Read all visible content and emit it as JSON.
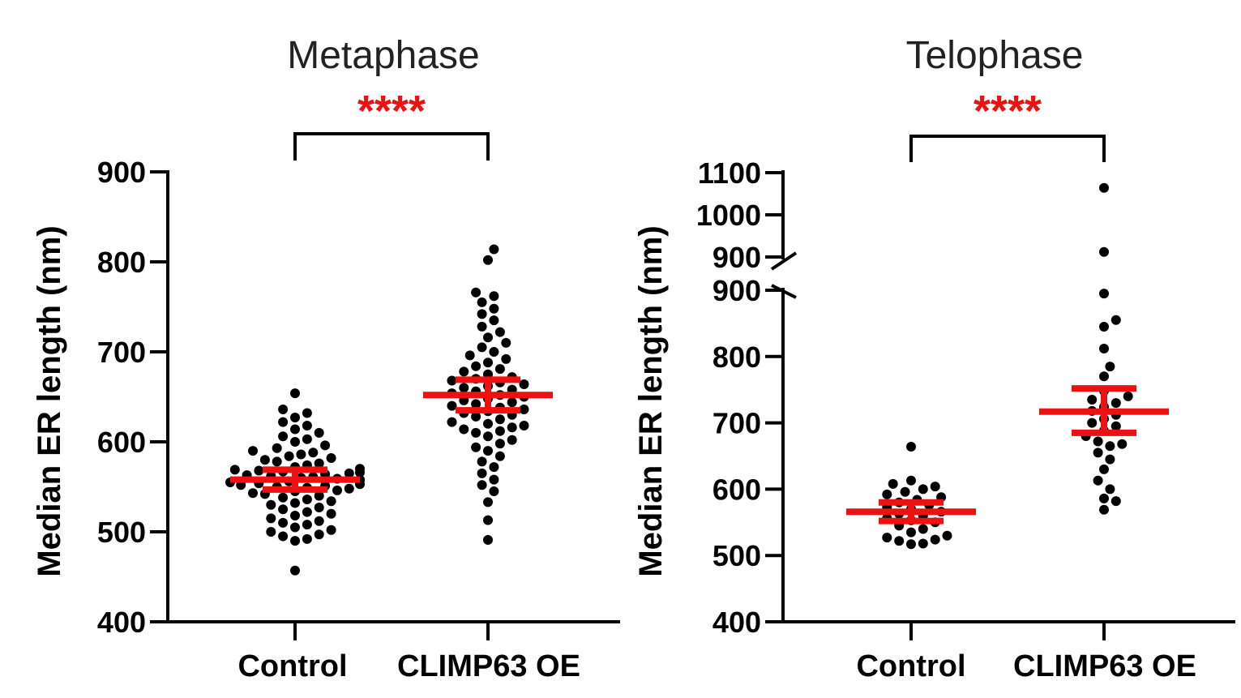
{
  "chart_data": [
    {
      "type": "scatter",
      "subtype": "dot-plot-with-mean-sem",
      "title": "Metaphase",
      "ylabel": "Median ER length (nm)",
      "xlabel": "",
      "ylim": [
        400,
        900
      ],
      "yticks": [
        400,
        500,
        600,
        700,
        800,
        900
      ],
      "categories": [
        "Control",
        "CLIMP63 OE"
      ],
      "significance": "****",
      "colors": {
        "points": "#000000",
        "summary": "#ee1111",
        "significance": "#ee1111"
      },
      "series": [
        {
          "name": "Control",
          "mean": 558,
          "sem_low": 547,
          "sem_high": 569,
          "values": [
            457,
            490,
            492,
            495,
            497,
            500,
            502,
            505,
            508,
            510,
            512,
            515,
            518,
            520,
            522,
            525,
            527,
            530,
            532,
            534,
            536,
            538,
            540,
            542,
            543,
            545,
            546,
            548,
            549,
            550,
            551,
            552,
            553,
            554,
            555,
            556,
            557,
            558,
            559,
            560,
            561,
            562,
            563,
            564,
            565,
            566,
            567,
            568,
            569,
            570,
            572,
            574,
            576,
            578,
            580,
            582,
            584,
            586,
            588,
            590,
            593,
            596,
            600,
            603,
            606,
            610,
            614,
            618,
            622,
            627,
            632,
            636,
            654
          ]
        },
        {
          "name": "CLIMP63 OE",
          "mean": 652,
          "sem_low": 635,
          "sem_high": 669,
          "values": [
            491,
            513,
            533,
            545,
            552,
            558,
            565,
            572,
            578,
            584,
            590,
            594,
            598,
            602,
            606,
            610,
            612,
            614,
            616,
            618,
            620,
            622,
            625,
            628,
            630,
            632,
            634,
            636,
            638,
            640,
            642,
            644,
            646,
            648,
            650,
            652,
            654,
            656,
            658,
            660,
            662,
            664,
            666,
            668,
            670,
            672,
            675,
            678,
            681,
            684,
            688,
            692,
            696,
            700,
            705,
            710,
            716,
            722,
            728,
            735,
            742,
            748,
            755,
            762,
            766,
            802,
            814
          ]
        }
      ]
    },
    {
      "type": "scatter",
      "subtype": "dot-plot-with-mean-sem",
      "title": "Telophase",
      "ylabel": "Median ER length (nm)",
      "xlabel": "",
      "ylim": [
        400,
        1100
      ],
      "axis_break": [
        900,
        900
      ],
      "yticks_lower": [
        400,
        500,
        600,
        700,
        800,
        900
      ],
      "yticks_upper": [
        900,
        1000,
        1100
      ],
      "categories": [
        "Control",
        "CLIMP63 OE"
      ],
      "significance": "****",
      "colors": {
        "points": "#000000",
        "summary": "#ee1111",
        "significance": "#ee1111"
      },
      "series": [
        {
          "name": "Control",
          "mean": 566,
          "sem_low": 552,
          "sem_high": 580,
          "values": [
            517,
            518,
            522,
            524,
            527,
            530,
            535,
            540,
            545,
            550,
            553,
            556,
            560,
            563,
            566,
            570,
            573,
            576,
            580,
            584,
            588,
            592,
            596,
            600,
            604,
            608,
            613,
            664
          ]
        },
        {
          "name": "CLIMP63 OE",
          "mean": 717,
          "sem_low": 685,
          "sem_high": 752,
          "values": [
            569,
            582,
            586,
            600,
            613,
            630,
            645,
            655,
            665,
            668,
            672,
            680,
            688,
            695,
            700,
            706,
            712,
            718,
            724,
            730,
            735,
            740,
            748,
            770,
            785,
            812,
            845,
            855,
            895,
            912,
            1064
          ]
        }
      ]
    }
  ]
}
